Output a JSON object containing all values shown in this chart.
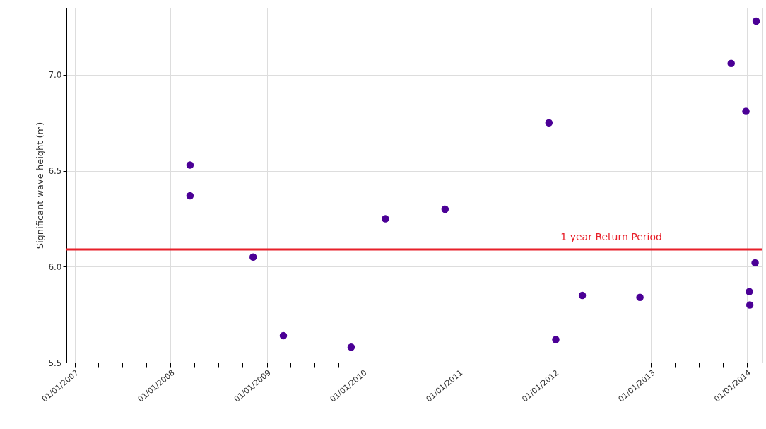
{
  "chart_data": {
    "type": "scatter",
    "ylabel": "Significant wave height (m)",
    "x": [
      "2008-03-15",
      "2008-03-15",
      "2008-11-10",
      "2009-03-05",
      "2009-11-18",
      "2010-03-28",
      "2010-11-10",
      "2011-12-10",
      "2012-01-05",
      "2012-04-15",
      "2012-11-20",
      "2013-11-02",
      "2013-12-28",
      "2014-01-10",
      "2014-01-12",
      "2014-02-01",
      "2014-02-05"
    ],
    "series": [
      {
        "color": "#4b0096",
        "values": [
          6.53,
          6.37,
          6.05,
          5.64,
          5.58,
          6.25,
          6.3,
          6.75,
          5.62,
          5.85,
          5.84,
          7.06,
          6.81,
          5.87,
          5.8,
          6.02,
          7.28
        ]
      }
    ],
    "xlim": [
      "2006-12-01",
      "2014-03-01"
    ],
    "xticks": [
      {
        "value": "2007-01-01",
        "label": "01/01/2007"
      },
      {
        "value": "2007-04-01",
        "label": null
      },
      {
        "value": "2007-07-01",
        "label": null
      },
      {
        "value": "2007-10-01",
        "label": null
      },
      {
        "value": "2008-01-01",
        "label": "01/01/2008"
      },
      {
        "value": "2008-04-01",
        "label": null
      },
      {
        "value": "2008-07-01",
        "label": null
      },
      {
        "value": "2008-10-01",
        "label": null
      },
      {
        "value": "2009-01-01",
        "label": "01/01/2009"
      },
      {
        "value": "2009-04-01",
        "label": null
      },
      {
        "value": "2009-07-01",
        "label": null
      },
      {
        "value": "2009-10-01",
        "label": null
      },
      {
        "value": "2010-01-01",
        "label": "01/01/2010"
      },
      {
        "value": "2010-04-01",
        "label": null
      },
      {
        "value": "2010-07-01",
        "label": null
      },
      {
        "value": "2010-10-01",
        "label": null
      },
      {
        "value": "2011-01-01",
        "label": "01/01/2011"
      },
      {
        "value": "2011-04-01",
        "label": null
      },
      {
        "value": "2011-07-01",
        "label": null
      },
      {
        "value": "2011-10-01",
        "label": null
      },
      {
        "value": "2012-01-01",
        "label": "01/01/2012"
      },
      {
        "value": "2012-04-01",
        "label": null
      },
      {
        "value": "2012-07-01",
        "label": null
      },
      {
        "value": "2012-10-01",
        "label": null
      },
      {
        "value": "2013-01-01",
        "label": "01/01/2013"
      },
      {
        "value": "2013-04-01",
        "label": null
      },
      {
        "value": "2013-07-01",
        "label": null
      },
      {
        "value": "2013-10-01",
        "label": null
      },
      {
        "value": "2014-01-01",
        "label": "01/01/2014"
      }
    ],
    "ylim": [
      5.5,
      7.35
    ],
    "yticks": [
      {
        "value": 5.5,
        "label": "5.5"
      },
      {
        "value": 6.0,
        "label": "6.0"
      },
      {
        "value": 6.5,
        "label": "6.5"
      },
      {
        "value": 7.0,
        "label": "7.0"
      }
    ],
    "ref_lines": [
      {
        "axis": "y",
        "value": 6.09,
        "label": "1 year Return Period",
        "color": "#e8202a"
      }
    ],
    "grid": true,
    "marker": "circle"
  }
}
